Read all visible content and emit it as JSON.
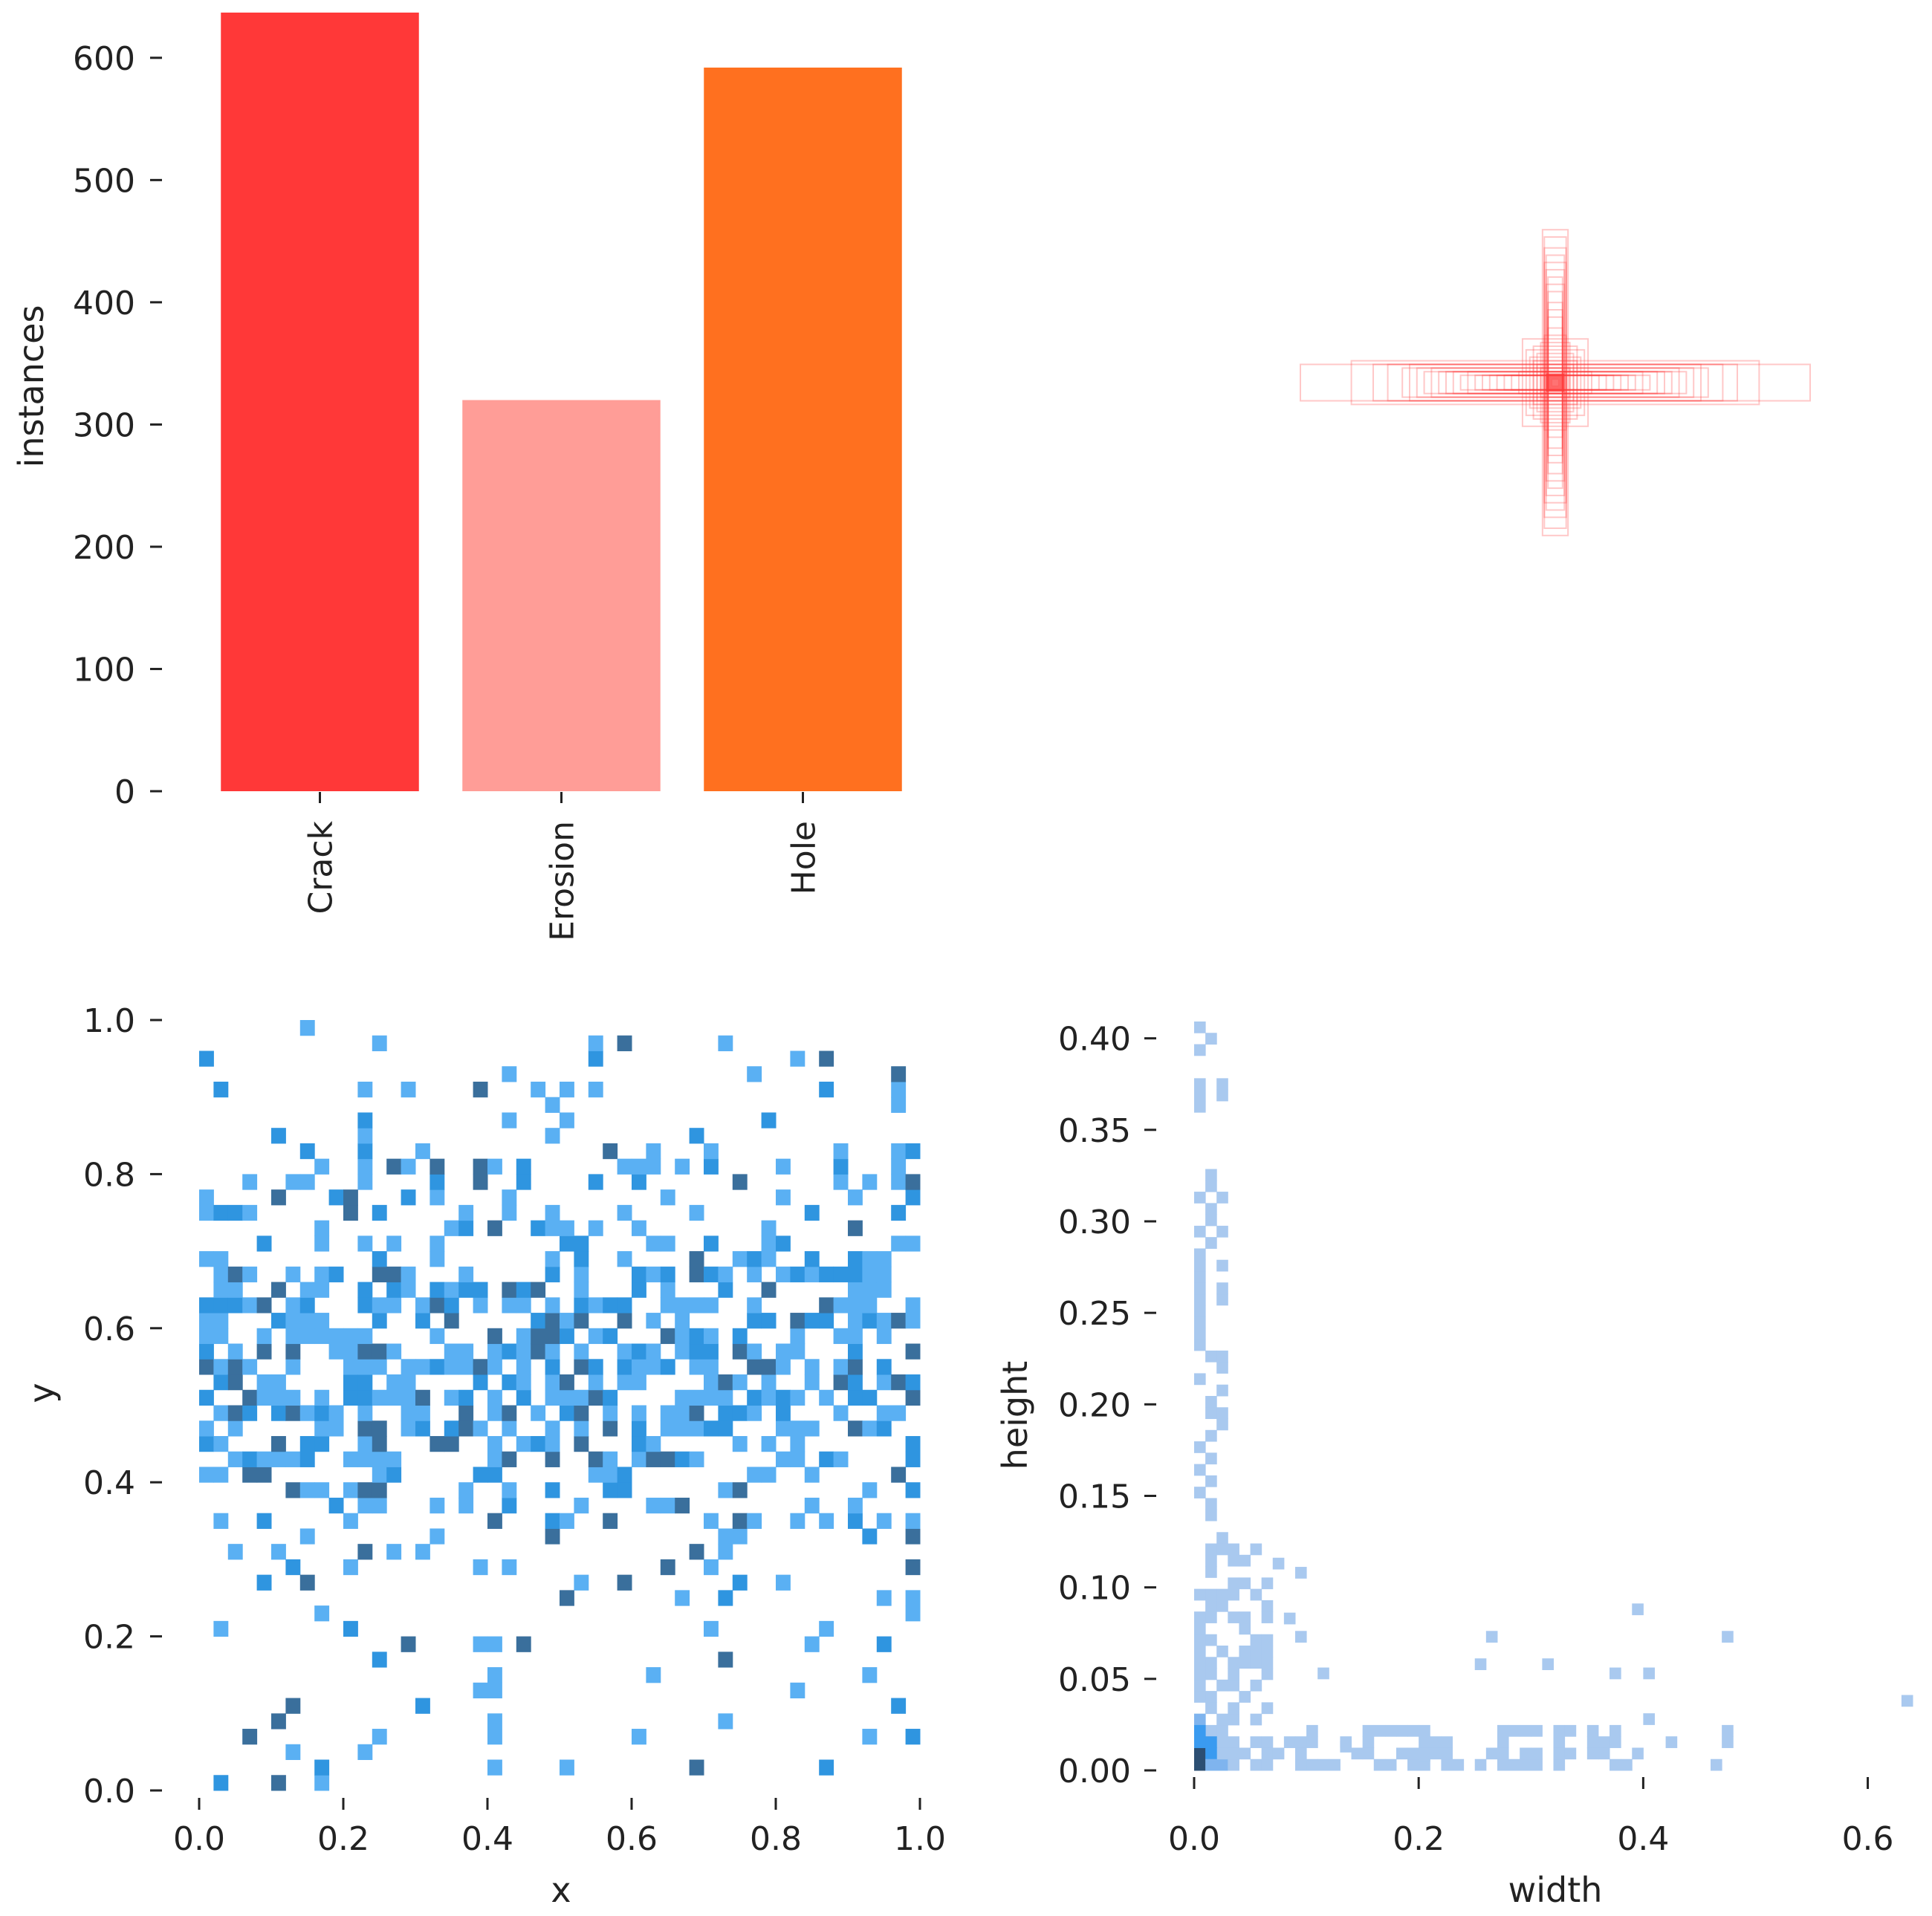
{
  "chart_data": [
    {
      "type": "bar",
      "ylabel": "instances",
      "xlabel": "",
      "ylim": [
        0,
        640
      ],
      "y_ticks": [
        "0",
        "100",
        "200",
        "300",
        "400",
        "500",
        "600"
      ],
      "y_tick_values": [
        0,
        100,
        200,
        300,
        400,
        500,
        600
      ],
      "categories": [
        "Crack",
        "Erosion",
        "Hole"
      ],
      "values": [
        637,
        320,
        592
      ],
      "colors": [
        "#ff3838",
        "#ff9d97",
        "#ff701f"
      ]
    },
    {
      "type": "scatter",
      "description_kind": "box-overlay",
      "color": "#ff3838",
      "centers": [
        0.5,
        0.5
      ],
      "boxes_wh": [
        [
          0.7,
          0.05
        ],
        [
          0.56,
          0.06
        ],
        [
          0.5,
          0.05
        ],
        [
          0.46,
          0.05
        ],
        [
          0.42,
          0.04
        ],
        [
          0.4,
          0.05
        ],
        [
          0.38,
          0.04
        ],
        [
          0.36,
          0.03
        ],
        [
          0.34,
          0.04
        ],
        [
          0.32,
          0.03
        ],
        [
          0.3,
          0.03
        ],
        [
          0.28,
          0.03
        ],
        [
          0.26,
          0.02
        ],
        [
          0.24,
          0.03
        ],
        [
          0.22,
          0.02
        ],
        [
          0.2,
          0.02
        ],
        [
          0.18,
          0.02
        ],
        [
          0.16,
          0.02
        ],
        [
          0.14,
          0.02
        ],
        [
          0.12,
          0.02
        ],
        [
          0.1,
          0.03
        ],
        [
          0.09,
          0.12
        ],
        [
          0.08,
          0.09
        ],
        [
          0.07,
          0.07
        ],
        [
          0.06,
          0.06
        ],
        [
          0.05,
          0.05
        ],
        [
          0.04,
          0.04
        ],
        [
          0.03,
          0.03
        ],
        [
          0.025,
          0.025
        ],
        [
          0.02,
          0.02
        ],
        [
          0.035,
          0.42
        ],
        [
          0.03,
          0.4
        ],
        [
          0.03,
          0.37
        ],
        [
          0.025,
          0.35
        ],
        [
          0.03,
          0.33
        ],
        [
          0.025,
          0.31
        ],
        [
          0.02,
          0.29
        ],
        [
          0.025,
          0.27
        ],
        [
          0.02,
          0.25
        ],
        [
          0.02,
          0.22
        ],
        [
          0.02,
          0.2
        ],
        [
          0.02,
          0.18
        ],
        [
          0.02,
          0.15
        ],
        [
          0.03,
          0.13
        ],
        [
          0.04,
          0.11
        ],
        [
          0.06,
          0.1
        ],
        [
          0.05,
          0.08
        ],
        [
          0.015,
          0.015
        ],
        [
          0.01,
          0.01
        ]
      ]
    },
    {
      "type": "heatmap",
      "xlabel": "x",
      "ylabel": "y",
      "xlim": [
        0,
        1
      ],
      "ylim": [
        0,
        1
      ],
      "x_ticks": [
        "0.0",
        "0.2",
        "0.4",
        "0.6",
        "0.8",
        "1.0"
      ],
      "y_ticks": [
        "0.0",
        "0.2",
        "0.4",
        "0.6",
        "0.8",
        "1.0"
      ],
      "bins": 50,
      "colors": [
        "#5ab0f3",
        "#2f95e0",
        "#3a6f9c"
      ],
      "legend": "none"
    },
    {
      "type": "heatmap",
      "xlabel": "width",
      "ylabel": "height",
      "xlim": [
        0,
        0.64
      ],
      "ylim": [
        0,
        0.41
      ],
      "x_ticks": [
        "0.0",
        "0.2",
        "0.4",
        "0.6"
      ],
      "x_tick_values": [
        0,
        0.2,
        0.4,
        0.6
      ],
      "y_ticks": [
        "0.00",
        "0.05",
        "0.10",
        "0.15",
        "0.20",
        "0.25",
        "0.30",
        "0.35",
        "0.40"
      ],
      "y_tick_values": [
        0,
        0.05,
        0.1,
        0.15,
        0.2,
        0.25,
        0.3,
        0.35,
        0.4
      ],
      "colors": [
        "#a9c9ef",
        "#7fb4ee",
        "#3a9bf0",
        "#2c4f73"
      ],
      "legend": "none"
    }
  ]
}
